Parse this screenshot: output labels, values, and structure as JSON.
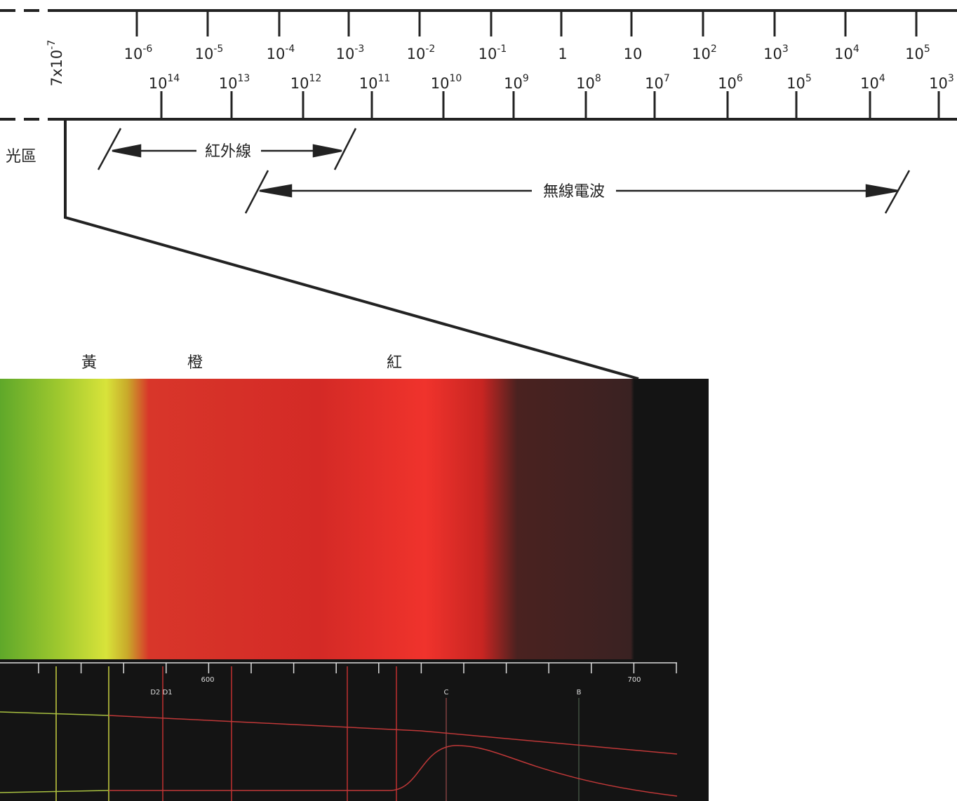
{
  "wavelength_scale": {
    "unit_label": {
      "base": "7x10",
      "exp": "-7"
    },
    "labels": [
      {
        "base": "10",
        "exp": "-6"
      },
      {
        "base": "10",
        "exp": "-5"
      },
      {
        "base": "10",
        "exp": "-4"
      },
      {
        "base": "10",
        "exp": "-3"
      },
      {
        "base": "10",
        "exp": "-2"
      },
      {
        "base": "10",
        "exp": "-1"
      },
      {
        "base": "1"
      },
      {
        "base": "10"
      },
      {
        "base": "10",
        "exp": "2"
      },
      {
        "base": "10",
        "exp": "3"
      },
      {
        "base": "10",
        "exp": "4"
      },
      {
        "base": "10",
        "exp": "5"
      }
    ]
  },
  "frequency_scale": {
    "labels": [
      {
        "base": "10",
        "exp": "14"
      },
      {
        "base": "10",
        "exp": "13"
      },
      {
        "base": "10",
        "exp": "12"
      },
      {
        "base": "10",
        "exp": "11"
      },
      {
        "base": "10",
        "exp": "10"
      },
      {
        "base": "10",
        "exp": "9"
      },
      {
        "base": "10",
        "exp": "8"
      },
      {
        "base": "10",
        "exp": "7"
      },
      {
        "base": "10",
        "exp": "6"
      },
      {
        "base": "10",
        "exp": "5"
      },
      {
        "base": "10",
        "exp": "4"
      },
      {
        "base": "10",
        "exp": "3"
      }
    ]
  },
  "regions": {
    "visible_partial": "光區",
    "infrared": "紅外線",
    "radio": "無線電波"
  },
  "color_names": [
    "黃",
    "橙",
    "紅"
  ],
  "spectrum_scale": {
    "labels": [
      "600",
      "700"
    ],
    "lines": [
      "D2 D1",
      "C",
      "B"
    ]
  }
}
